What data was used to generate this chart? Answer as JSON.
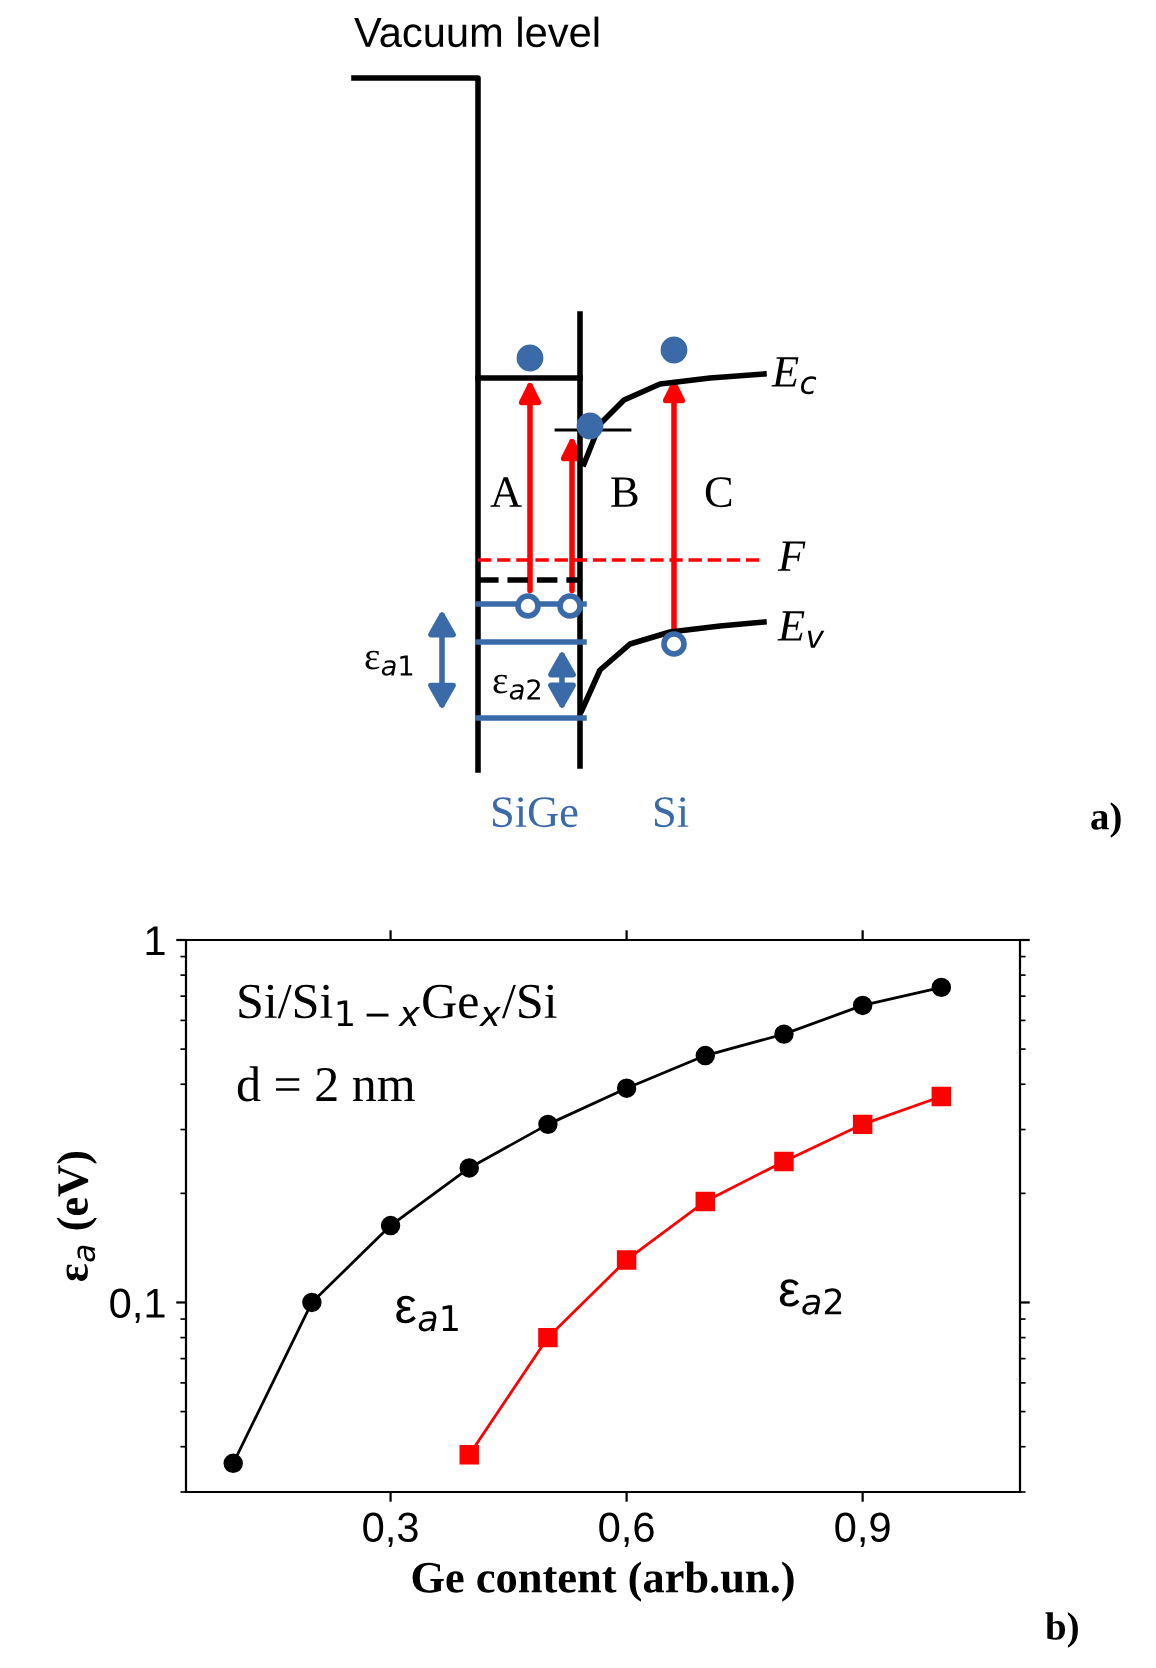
{
  "chart_data": [
    {
      "type": "other",
      "annotations": [
        "Vacuum level",
        "A",
        "B",
        "C",
        "E$_{c}$",
        "F",
        "E$_{v}$",
        "ε$_{a1}$",
        "ε$_{a2}$",
        "SiGe",
        "Si",
        "a)"
      ]
    },
    {
      "type": "line",
      "x": [
        0.1,
        0.2,
        0.3,
        0.4,
        0.5,
        0.6,
        0.7,
        0.8,
        0.9,
        1.0
      ],
      "series": [
        {
          "color": "#000000",
          "marker": "circle",
          "values": [
            0.036,
            0.1,
            0.163,
            0.235,
            0.31,
            0.39,
            0.48,
            0.55,
            0.66,
            0.74
          ]
        },
        {
          "color": "#ff0000",
          "marker": "square",
          "x": [
            0.4,
            0.5,
            0.6,
            0.7,
            0.8,
            0.9,
            1.0
          ],
          "values": [
            0.038,
            0.08,
            0.131,
            0.19,
            0.245,
            0.31,
            0.37
          ]
        }
      ],
      "xlabel": "Ge content (arb.un.)",
      "ylabel": "ε$_{a}$ (eV)",
      "log": "y",
      "xlim": [
        0.04,
        1.1
      ],
      "xticks": [
        {
          "value": 0.3,
          "label": "0,3"
        },
        {
          "value": 0.6,
          "label": "0,6"
        },
        {
          "value": 0.9,
          "label": "0,9"
        }
      ],
      "ylim": [
        0.03,
        1
      ],
      "yticks": [
        {
          "value": 0.1,
          "label": "0,1"
        },
        1
      ],
      "annotations": [
        "Si/Si$_{1−x}$Ge$_{x}$/Si",
        "d = 2 nm",
        "ε$_{a1}$",
        "ε$_{a2}$",
        "b)"
      ]
    }
  ]
}
